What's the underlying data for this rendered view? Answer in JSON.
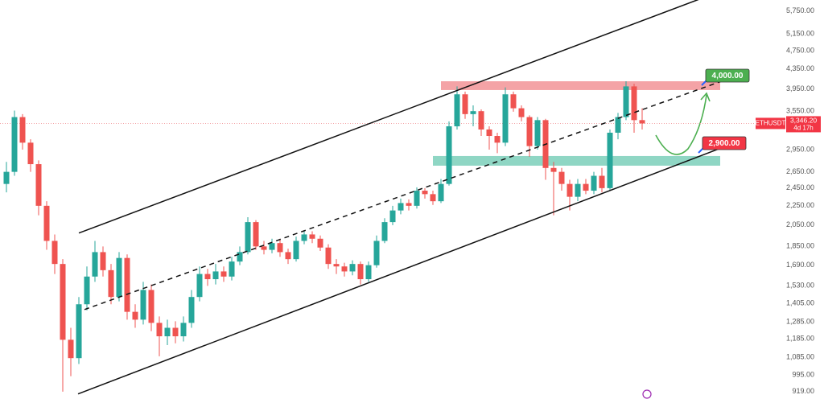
{
  "chart_data": {
    "type": "candlestick",
    "symbol": "ETHUSDT",
    "last_price": {
      "value": 3346.2,
      "label": "3,346.20"
    },
    "countdown": "4d 17h",
    "log_scale": true,
    "up_color": "#26a69a",
    "down_color": "#ef5350",
    "ylim": [
      887,
      6065
    ],
    "xlim": [
      -0.8,
      101.6
    ],
    "yticks": [
      {
        "value": 5750,
        "label": "5,750.00"
      },
      {
        "value": 5150,
        "label": "5,150.00"
      },
      {
        "value": 4750,
        "label": "4,750.00"
      },
      {
        "value": 4350,
        "label": "4,350.00"
      },
      {
        "value": 3950,
        "label": "3,950.00"
      },
      {
        "value": 3550,
        "label": "3,550.00"
      },
      {
        "value": 2950,
        "label": "2,950.00"
      },
      {
        "value": 2650,
        "label": "2,650.00"
      },
      {
        "value": 2450,
        "label": "2,450.00"
      },
      {
        "value": 2250,
        "label": "2,250.00"
      },
      {
        "value": 2050,
        "label": "2,050.00"
      },
      {
        "value": 1850,
        "label": "1,850.00"
      },
      {
        "value": 1690,
        "label": "1,690.00"
      },
      {
        "value": 1530,
        "label": "1,530.00"
      },
      {
        "value": 1405,
        "label": "1,405.00"
      },
      {
        "value": 1285,
        "label": "1,285.00"
      },
      {
        "value": 1185,
        "label": "1,185.00"
      },
      {
        "value": 1085,
        "label": "1,085.00"
      },
      {
        "value": 995,
        "label": "995.00"
      },
      {
        "value": 919,
        "label": "919.00"
      }
    ],
    "open": [
      2500,
      2650,
      3450,
      3050,
      2750,
      2250,
      1900,
      1700,
      1180,
      1080,
      1400,
      1600,
      1800,
      1650,
      1450,
      1750,
      1350,
      1300,
      1500,
      1280,
      1200,
      1250,
      1200,
      1280,
      1450,
      1620,
      1580,
      1640,
      1600,
      1720,
      1800,
      2080,
      1850,
      1820,
      1880,
      1800,
      1740,
      1900,
      1960,
      1920,
      1840,
      1700,
      1680,
      1640,
      1700,
      1580,
      1690,
      1900,
      2080,
      2200,
      2280,
      2250,
      2420,
      2380,
      2300,
      2500,
      3300,
      3850,
      3500,
      3550,
      3250,
      3150,
      3050,
      3850,
      3600,
      3450,
      3000,
      3400,
      2700,
      2650,
      2500,
      2350,
      2500,
      2420,
      2600,
      2450,
      3200,
      3450,
      4000,
      3400
    ],
    "high": [
      2780,
      3560,
      3500,
      3100,
      2800,
      2300,
      1960,
      1740,
      1250,
      1450,
      1680,
      1900,
      1850,
      1700,
      1800,
      1780,
      1400,
      1560,
      1540,
      1320,
      1300,
      1290,
      1320,
      1500,
      1680,
      1660,
      1700,
      1680,
      1760,
      1850,
      2130,
      2100,
      1900,
      1920,
      1920,
      1830,
      1940,
      2000,
      1990,
      1950,
      1870,
      1740,
      1710,
      1730,
      1720,
      1720,
      1950,
      2120,
      2250,
      2330,
      2320,
      2460,
      2450,
      2420,
      2560,
      3380,
      4000,
      3900,
      3650,
      3580,
      3300,
      3200,
      3980,
      3900,
      3650,
      3480,
      3450,
      3420,
      2780,
      2700,
      2550,
      2560,
      2560,
      2650,
      2700,
      3250,
      3520,
      4100,
      4050,
      3600
    ],
    "low": [
      2400,
      2600,
      2950,
      2650,
      2150,
      1820,
      1620,
      919,
      990,
      1050,
      1360,
      1560,
      1600,
      1400,
      1420,
      1300,
      1250,
      1270,
      1230,
      1090,
      1150,
      1160,
      1170,
      1250,
      1420,
      1530,
      1540,
      1560,
      1570,
      1690,
      1780,
      1820,
      1780,
      1790,
      1760,
      1700,
      1720,
      1870,
      1880,
      1810,
      1660,
      1620,
      1600,
      1610,
      1540,
      1560,
      1670,
      1880,
      2050,
      2160,
      2200,
      2220,
      2330,
      2260,
      2280,
      2480,
      3250,
      3420,
      3300,
      3150,
      2950,
      2900,
      3000,
      3540,
      3380,
      2850,
      2950,
      2550,
      2150,
      2420,
      2200,
      2300,
      2380,
      2380,
      2400,
      2420,
      3100,
      3400,
      3200,
      3250
    ],
    "close": [
      2650,
      3450,
      3050,
      2750,
      2250,
      1900,
      1700,
      1180,
      1080,
      1400,
      1600,
      1800,
      1650,
      1450,
      1750,
      1350,
      1300,
      1500,
      1280,
      1200,
      1250,
      1200,
      1280,
      1450,
      1620,
      1580,
      1640,
      1600,
      1720,
      1800,
      2080,
      1850,
      1820,
      1880,
      1800,
      1740,
      1900,
      1960,
      1920,
      1840,
      1700,
      1680,
      1640,
      1700,
      1580,
      1690,
      1900,
      2080,
      2200,
      2280,
      2250,
      2420,
      2380,
      2300,
      2500,
      3300,
      3850,
      3500,
      3550,
      3250,
      3150,
      3050,
      3850,
      3600,
      3450,
      3000,
      3400,
      2700,
      2650,
      2500,
      2350,
      2500,
      2420,
      2600,
      2450,
      3200,
      3450,
      4000,
      3400,
      3346.2
    ],
    "zones": [
      {
        "start": 54,
        "end": 88.7,
        "low": 3930,
        "high": 4100,
        "color": "#f4a3a6"
      },
      {
        "start": 53,
        "end": 88.7,
        "low": 2730,
        "high": 2860,
        "color": "#8fd6c4"
      }
    ],
    "lines": [
      {
        "from": [
          9,
          1973
        ],
        "to": [
          86,
          6080
        ],
        "style": "solid"
      },
      {
        "from": [
          8.9,
          909
        ],
        "to": [
          91.2,
          3080
        ],
        "style": "solid"
      },
      {
        "from": [
          9.7,
          1365
        ],
        "to": [
          89.2,
          4120
        ],
        "style": "dashed"
      }
    ],
    "annotations": [
      {
        "label": "4,000.00",
        "color": "#4caf50"
      },
      {
        "label": "2,900.00",
        "color": "#f23645"
      }
    ]
  }
}
